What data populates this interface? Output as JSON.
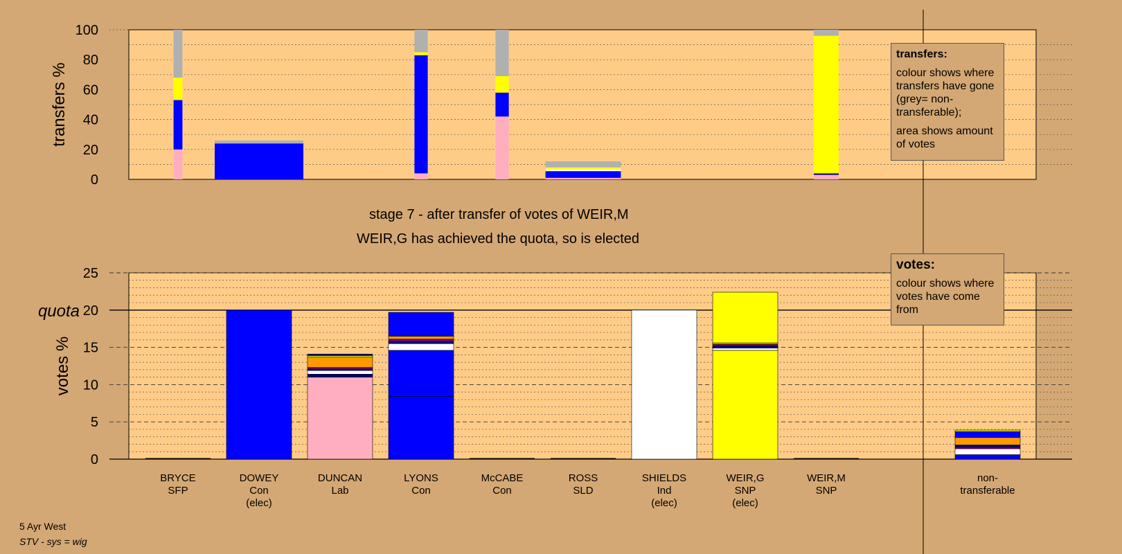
{
  "stage_title": "stage 7 - after transfer of votes of WEIR,M",
  "stage_subtitle": "WEIR,G has achieved the quota, so is elected",
  "legend_transfers": {
    "heading": "transfers:",
    "line1": "colour shows where transfers have gone (grey= non-transferable);",
    "line2": "area shows amount of votes"
  },
  "legend_votes": {
    "heading": "votes:",
    "line1": "colour shows where votes have come from"
  },
  "footer": {
    "line1": "5 Ayr West",
    "line2": "STV - sys = wig"
  },
  "colors": {
    "background": "#d4a874",
    "plot_bg": "#ffcc88",
    "blue": "#0000ff",
    "pink": "#ffaec0",
    "yellow": "#ffff00",
    "grey": "#b0b0b0",
    "orange": "#ff9900",
    "white": "#ffffff",
    "navy": "#000080",
    "purple": "#800080"
  },
  "chart_data": [
    {
      "type": "bar",
      "stacked": true,
      "ylabel": "transfers %",
      "ylim": [
        0,
        100
      ],
      "yticks": [
        0,
        20,
        40,
        60,
        80,
        100
      ],
      "grid": true,
      "bars": [
        {
          "candidate": "BRYCE",
          "width_share": 0.1,
          "segments": [
            {
              "color": "pink",
              "value": 20
            },
            {
              "color": "blue",
              "value": 33
            },
            {
              "color": "yellow",
              "value": 15
            },
            {
              "color": "grey",
              "value": 32
            }
          ]
        },
        {
          "candidate": "DOWEY",
          "width_share": 1.0,
          "segments": [
            {
              "color": "blue",
              "value": 24
            },
            {
              "color": "grey",
              "value": 2
            }
          ]
        },
        {
          "candidate": "LYONS",
          "width_share": 0.15,
          "segments": [
            {
              "color": "pink",
              "value": 4
            },
            {
              "color": "blue",
              "value": 79
            },
            {
              "color": "yellow",
              "value": 2
            },
            {
              "color": "grey",
              "value": 15
            }
          ]
        },
        {
          "candidate": "McCABE",
          "width_share": 0.15,
          "segments": [
            {
              "color": "pink",
              "value": 42
            },
            {
              "color": "blue",
              "value": 16
            },
            {
              "color": "yellow",
              "value": 11
            },
            {
              "color": "grey",
              "value": 31
            }
          ]
        },
        {
          "candidate": "ROSS",
          "width_share": 0.85,
          "segments": [
            {
              "color": "pink",
              "value": 1
            },
            {
              "color": "blue",
              "value": 4.5
            },
            {
              "color": "white",
              "value": 1
            },
            {
              "color": "yellow",
              "value": 1.5
            },
            {
              "color": "grey",
              "value": 4
            }
          ]
        },
        {
          "candidate": "WEIR,M",
          "width_share": 0.28,
          "segments": [
            {
              "color": "pink",
              "value": 3
            },
            {
              "color": "navy",
              "value": 1
            },
            {
              "color": "yellow",
              "value": 92
            },
            {
              "color": "grey",
              "value": 4
            }
          ]
        }
      ]
    },
    {
      "type": "bar",
      "stacked": true,
      "ylabel": "votes %",
      "ylim": [
        0,
        25
      ],
      "yticks": [
        0,
        5,
        10,
        15,
        20,
        25
      ],
      "quota": 20,
      "quota_label": "quota",
      "grid": true,
      "categories": [
        {
          "name": "BRYCE",
          "party": "SFP",
          "status": ""
        },
        {
          "name": "DOWEY",
          "party": "Con",
          "status": "(elec)"
        },
        {
          "name": "DUNCAN",
          "party": "Lab",
          "status": ""
        },
        {
          "name": "LYONS",
          "party": "Con",
          "status": ""
        },
        {
          "name": "McCABE",
          "party": "Con",
          "status": ""
        },
        {
          "name": "ROSS",
          "party": "SLD",
          "status": ""
        },
        {
          "name": "SHIELDS",
          "party": "Ind",
          "status": "(elec)"
        },
        {
          "name": "WEIR,G",
          "party": "SNP",
          "status": "(elec)"
        },
        {
          "name": "WEIR,M",
          "party": "SNP",
          "status": ""
        }
      ],
      "nontransferable_label": "non-transferable",
      "stacks": [
        [],
        [
          {
            "color": "blue",
            "value": 20
          }
        ],
        [
          {
            "color": "pink",
            "value": 11
          },
          {
            "color": "navy",
            "value": 0.4
          },
          {
            "color": "white",
            "value": 0.5
          },
          {
            "color": "navy",
            "value": 0.2
          },
          {
            "color": "purple",
            "value": 0.2
          },
          {
            "color": "orange",
            "value": 1.4
          },
          {
            "color": "yellow",
            "value": 0.2
          },
          {
            "color": "navy",
            "value": 0.2
          }
        ],
        [
          {
            "color": "blue",
            "value": 8.4
          },
          {
            "color": "blue",
            "value": 6.2
          },
          {
            "color": "white",
            "value": 0.9
          },
          {
            "color": "navy",
            "value": 0.3
          },
          {
            "color": "purple",
            "value": 0.3
          },
          {
            "color": "orange",
            "value": 0.4
          },
          {
            "color": "blue",
            "value": 3.2
          }
        ],
        [],
        [],
        [
          {
            "color": "white",
            "value": 20
          }
        ],
        [
          {
            "color": "yellow",
            "value": 14.6
          },
          {
            "color": "white",
            "value": 0.3
          },
          {
            "color": "navy",
            "value": 0.3
          },
          {
            "color": "purple",
            "value": 0.2
          },
          {
            "color": "orange",
            "value": 0.2
          },
          {
            "color": "yellow",
            "value": 6.8
          }
        ],
        []
      ],
      "nontransferable": [
        {
          "color": "blue",
          "value": 0.6
        },
        {
          "color": "white",
          "value": 0.8
        },
        {
          "color": "purple",
          "value": 0.2
        },
        {
          "color": "navy",
          "value": 0.3
        },
        {
          "color": "orange",
          "value": 1.0
        },
        {
          "color": "blue",
          "value": 0.8
        },
        {
          "color": "yellow",
          "value": 0.2
        }
      ]
    }
  ]
}
